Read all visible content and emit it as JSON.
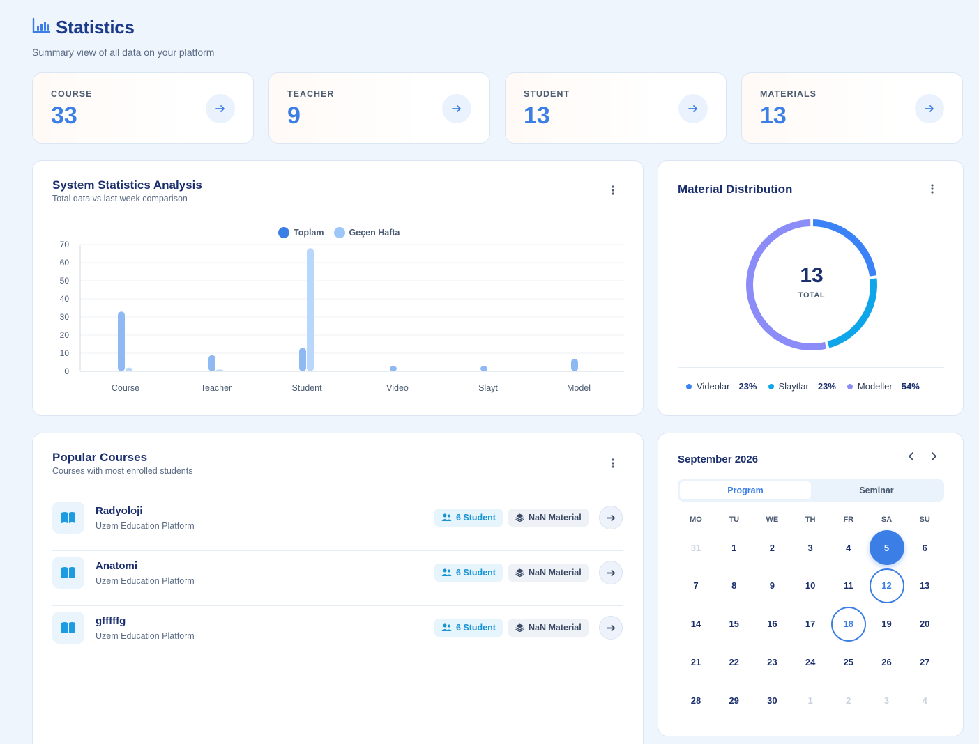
{
  "page": {
    "title": "Statistics",
    "subtitle": "Summary view of all data on your platform",
    "title_icon": "bar-chart-icon"
  },
  "stats": [
    {
      "label": "COURSE",
      "value": "33"
    },
    {
      "label": "TEACHER",
      "value": "9"
    },
    {
      "label": "STUDENT",
      "value": "13"
    },
    {
      "label": "MATERIALS",
      "value": "13"
    }
  ],
  "analysis": {
    "title": "System Statistics Analysis",
    "subtitle": "Total data vs last week comparison"
  },
  "chart_data": {
    "type": "bar",
    "categories": [
      "Course",
      "Teacher",
      "Student",
      "Video",
      "Slayt",
      "Model"
    ],
    "series": [
      {
        "name": "Toplam",
        "values": [
          33,
          9,
          13,
          3,
          3,
          7
        ],
        "color": "#8fb9f2"
      },
      {
        "name": "Geçen Hafta",
        "values": [
          2,
          1,
          68,
          0,
          0,
          0
        ],
        "color": "#b9d7fb"
      }
    ],
    "legend_colors": [
      "#3b7fe6",
      "#9ec7f9"
    ],
    "yticks": [
      "0",
      "10",
      "20",
      "30",
      "40",
      "50",
      "60",
      "70"
    ],
    "ylim": [
      0,
      70
    ],
    "grid": true,
    "legend_position": "top-center"
  },
  "distribution": {
    "title": "Material Distribution",
    "total": "13",
    "total_label": "TOTAL",
    "segments": [
      {
        "name": "Videolar",
        "pct": "23%",
        "value": 23,
        "color": "#3b82f6"
      },
      {
        "name": "Slaytlar",
        "pct": "23%",
        "value": 23,
        "color": "#0ea5e9"
      },
      {
        "name": "Modeller",
        "pct": "54%",
        "value": 54,
        "color": "#8b8cf8"
      }
    ]
  },
  "popular": {
    "title": "Popular Courses",
    "subtitle": "Courses with most enrolled students",
    "courses": [
      {
        "name": "Radyoloji",
        "org": "Uzem Education Platform",
        "students": "6 Student",
        "materials": "NaN Material"
      },
      {
        "name": "Anatomi",
        "org": "Uzem Education Platform",
        "students": "6 Student",
        "materials": "NaN Material"
      },
      {
        "name": "gfffffg",
        "org": "Uzem Education Platform",
        "students": "6 Student",
        "materials": "NaN Material"
      }
    ]
  },
  "calendar": {
    "month": "September 2026",
    "tabs": [
      "Program",
      "Seminar"
    ],
    "weekdays": [
      "MO",
      "TU",
      "WE",
      "TH",
      "FR",
      "SA",
      "SU"
    ],
    "weeks": [
      [
        "31",
        "1",
        "2",
        "3",
        "4",
        "5",
        "6"
      ],
      [
        "7",
        "8",
        "9",
        "10",
        "11",
        "12",
        "13"
      ],
      [
        "14",
        "15",
        "16",
        "17",
        "18",
        "19",
        "20"
      ],
      [
        "21",
        "22",
        "23",
        "24",
        "25",
        "26",
        "27"
      ],
      [
        "28",
        "29",
        "30",
        "1",
        "2",
        "3",
        "4"
      ]
    ],
    "muted": [
      "0-0",
      "4-3",
      "4-4",
      "4-5",
      "4-6"
    ],
    "selected": "0-5",
    "ringed": [
      "1-5",
      "2-4"
    ]
  }
}
